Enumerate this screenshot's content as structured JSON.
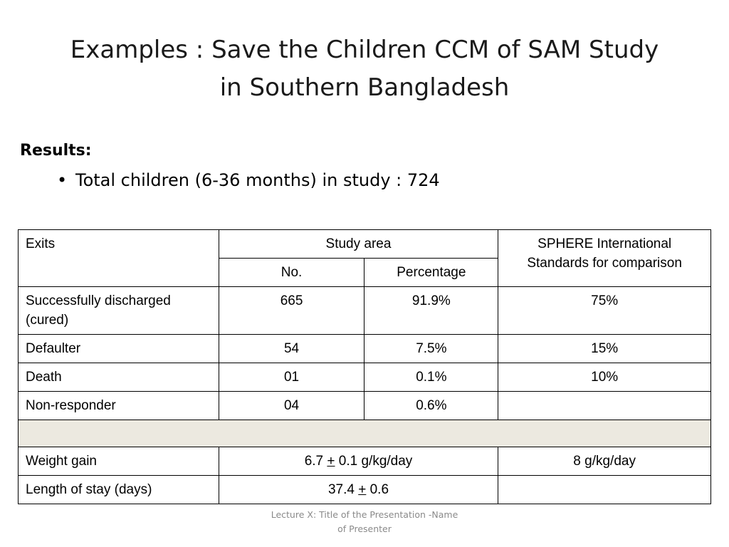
{
  "title": {
    "line1": "Examples : Save the Children CCM of SAM Study",
    "line2": "in Southern Bangladesh"
  },
  "results": {
    "heading": "Results:",
    "bullet": "Total children (6-36 months) in study : 724"
  },
  "table": {
    "header": {
      "exits": "Exits",
      "study_area": "Study area",
      "sphere": "SPHERE International Standards for comparison",
      "no": "No.",
      "percentage": "Percentage"
    },
    "rows": [
      {
        "label": "Successfully discharged (cured)",
        "no": "665",
        "pct": "91.9%",
        "sphere": "75%"
      },
      {
        "label": "Defaulter",
        "no": "54",
        "pct": "7.5%",
        "sphere": "15%"
      },
      {
        "label": "Death",
        "no": "01",
        "pct": "0.1%",
        "sphere": "10%"
      },
      {
        "label": "Non-responder",
        "no": "04",
        "pct": "0.6%",
        "sphere": ""
      }
    ],
    "weight_gain": {
      "label": "Weight gain",
      "value_pre": "6.7 ",
      "pm": "+",
      "value_post": " 0.1 g/kg/day",
      "sphere": "8 g/kg/day"
    },
    "length_of_stay": {
      "label": "Length of stay (days)",
      "value_pre": "37.4 ",
      "pm": "+",
      "value_post": " 0.6",
      "sphere": ""
    }
  },
  "footer": {
    "line1": "Lecture X: Title of the Presentation -Name",
    "line2": "of Presenter"
  }
}
